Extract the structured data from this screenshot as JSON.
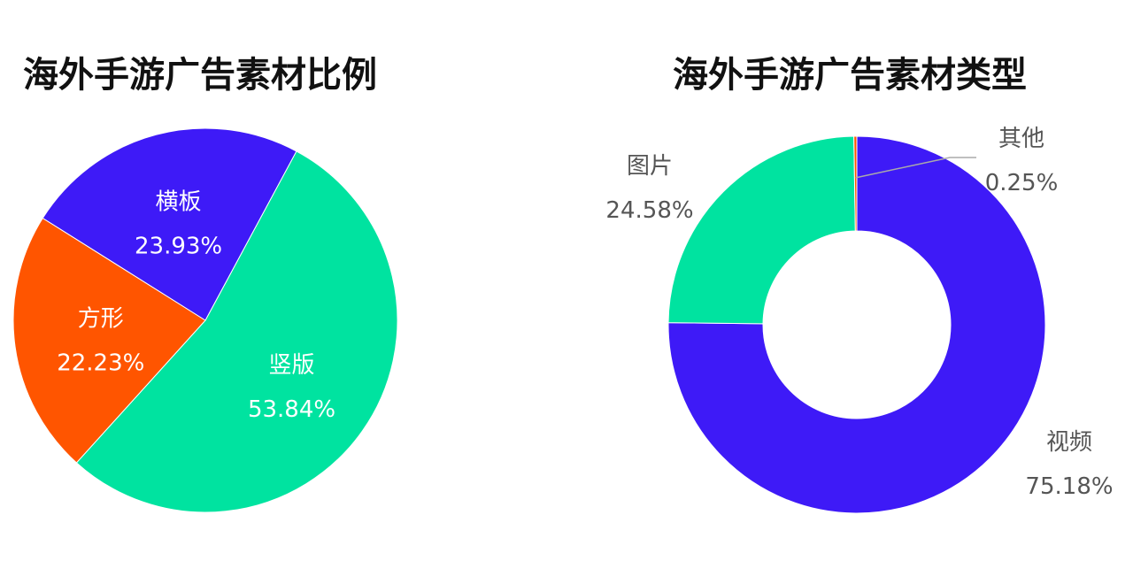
{
  "chart_data": [
    {
      "type": "pie",
      "title": "海外手游广告素材比例",
      "slices": [
        {
          "label": "竖版",
          "value": 53.84,
          "display": "53.84%",
          "color": "#00e3a0"
        },
        {
          "label": "方形",
          "value": 22.23,
          "display": "22.23%",
          "color": "#ff5500"
        },
        {
          "label": "横板",
          "value": 23.93,
          "display": "23.93%",
          "color": "#3e1af7"
        }
      ]
    },
    {
      "type": "pie",
      "variant": "donut",
      "title": "海外手游广告素材类型",
      "slices": [
        {
          "label": "视频",
          "value": 75.18,
          "display": "75.18%",
          "color": "#3e1af7"
        },
        {
          "label": "图片",
          "value": 24.58,
          "display": "24.58%",
          "color": "#00e3a0"
        },
        {
          "label": "其他",
          "value": 0.25,
          "display": "0.25%",
          "color": "#ff5500"
        }
      ]
    }
  ]
}
